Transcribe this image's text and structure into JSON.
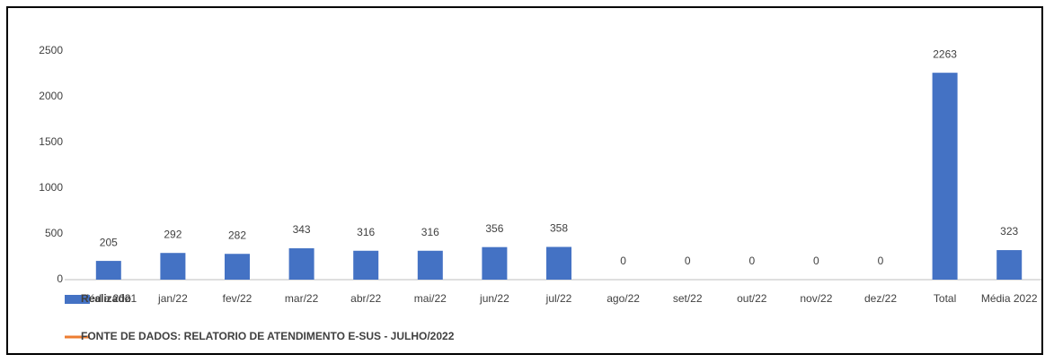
{
  "chart_data": {
    "type": "bar",
    "categories": [
      "Média 2021",
      "jan/22",
      "fev/22",
      "mar/22",
      "abr/22",
      "mai/22",
      "jun/22",
      "jul/22",
      "ago/22",
      "set/22",
      "out/22",
      "nov/22",
      "dez/22",
      "Total",
      "Média 2022"
    ],
    "series": [
      {
        "name": "Realizado",
        "color": "#4472c4",
        "values": [
          205,
          292,
          282,
          343,
          316,
          316,
          356,
          358,
          0,
          0,
          0,
          0,
          0,
          2263,
          323
        ]
      },
      {
        "name": "FONTE DE DADOS: RELATORIO DE ATENDIMENTO E-SUS - JULHO/2022",
        "color": "#ed7d31",
        "values": [
          null,
          null,
          null,
          null,
          null,
          null,
          null,
          null,
          null,
          null,
          null,
          null,
          null,
          null,
          null
        ]
      }
    ],
    "ylim": [
      0,
      2500
    ],
    "yticks": [
      0,
      500,
      1000,
      1500,
      2000,
      2500
    ],
    "grid": false
  }
}
